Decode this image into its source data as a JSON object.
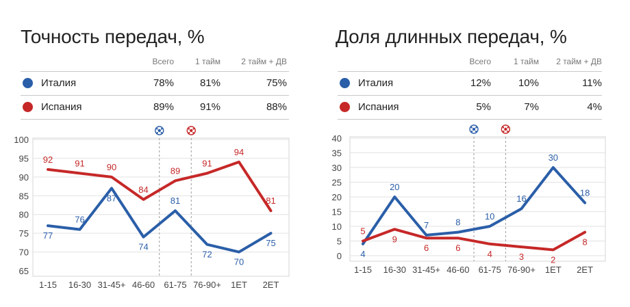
{
  "panels": [
    {
      "title": "Точность передач, %",
      "table": {
        "headers": [
          "Всего",
          "1 тайм",
          "2 тайм + ДВ"
        ],
        "rows": [
          {
            "team": "Италия",
            "color": "#2a5ea8",
            "values": [
              "78%",
              "81%",
              "75%"
            ]
          },
          {
            "team": "Испания",
            "color": "#c62828",
            "values": [
              "89%",
              "91%",
              "88%"
            ]
          }
        ]
      }
    },
    {
      "title": "Доля длинных передач, %",
      "table": {
        "headers": [
          "Всего",
          "1 тайм",
          "2 тайм + ДВ"
        ],
        "rows": [
          {
            "team": "Италия",
            "color": "#2a5ea8",
            "values": [
              "12%",
              "10%",
              "11%"
            ]
          },
          {
            "team": "Испания",
            "color": "#c62828",
            "values": [
              "5%",
              "7%",
              "4%"
            ]
          }
        ]
      }
    }
  ],
  "chart_data": [
    {
      "type": "line",
      "categories": [
        "1-15",
        "16-30",
        "31-45+",
        "46-60",
        "61-75",
        "76-90+",
        "1ET",
        "2ET"
      ],
      "ylim": [
        65,
        100
      ],
      "yticks": [
        65,
        70,
        75,
        80,
        85,
        90,
        95,
        100
      ],
      "grid": true,
      "goal_markers": [
        {
          "after_category": "46-60",
          "team": "Испания",
          "icon": "football-icon",
          "color": "#2a5ea8"
        },
        {
          "after_category": "61-75",
          "team": "Италия",
          "icon": "football-icon",
          "color": "#c62828"
        }
      ],
      "series": [
        {
          "name": "Италия",
          "color": "#2a5ea8",
          "values": [
            77,
            76,
            87,
            74,
            81,
            72,
            70,
            75
          ]
        },
        {
          "name": "Испания",
          "color": "#c62828",
          "values": [
            92,
            91,
            90,
            84,
            89,
            91,
            94,
            81
          ]
        }
      ]
    },
    {
      "type": "line",
      "categories": [
        "1-15",
        "16-30",
        "31-45+",
        "46-60",
        "61-75",
        "76-90+",
        "1ET",
        "2ET"
      ],
      "ylim": [
        0,
        40
      ],
      "yticks": [
        0,
        5,
        10,
        15,
        20,
        25,
        30,
        35,
        40
      ],
      "grid": true,
      "goal_markers": [
        {
          "after_category": "46-60",
          "team": "Испания",
          "icon": "football-icon",
          "color": "#2a5ea8"
        },
        {
          "after_category": "61-75",
          "team": "Италия",
          "icon": "football-icon",
          "color": "#c62828"
        }
      ],
      "series": [
        {
          "name": "Италия",
          "color": "#2a5ea8",
          "values": [
            4,
            20,
            7,
            8,
            10,
            16,
            30,
            18
          ]
        },
        {
          "name": "Испания",
          "color": "#c62828",
          "values": [
            5,
            9,
            6,
            6,
            4,
            3,
            2,
            8
          ]
        }
      ]
    }
  ]
}
